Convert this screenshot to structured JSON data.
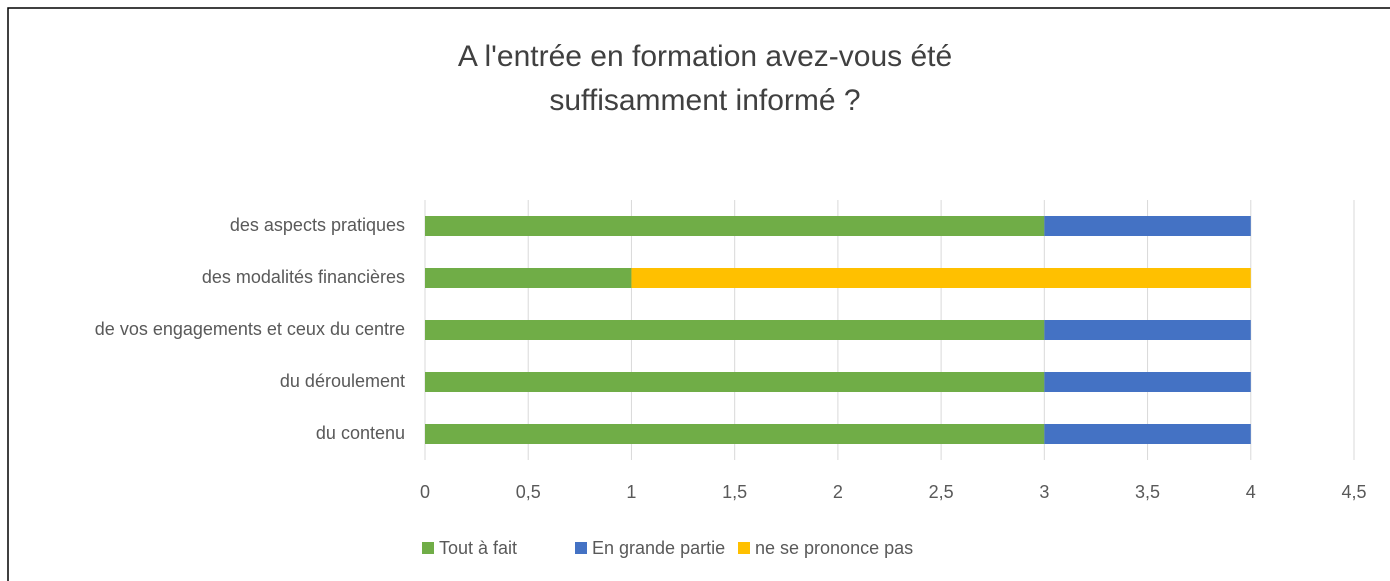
{
  "chart_data": {
    "type": "stacked-barh",
    "title": [
      "A l'entrée en formation avez-vous été",
      "suffisamment informé ?"
    ],
    "categories": [
      "des aspects pratiques",
      "des modalités financières",
      "de vos engagements et ceux du centre",
      "du déroulement",
      "du contenu"
    ],
    "series": [
      {
        "name": "Tout à fait",
        "color": "#70ad47",
        "values": [
          3,
          1,
          3,
          3,
          3
        ]
      },
      {
        "name": "En grande partie",
        "color": "#4472c4",
        "values": [
          1,
          0,
          1,
          1,
          1
        ]
      },
      {
        "name": "ne se prononce pas",
        "color": "#ffc000",
        "values": [
          0,
          3,
          0,
          0,
          0
        ]
      }
    ],
    "xlim": [
      0,
      4.5
    ],
    "xticks": [
      0,
      {
        "value": 0.5,
        "label": "0,5"
      },
      1,
      {
        "value": 1.5,
        "label": "1,5"
      },
      2,
      {
        "value": 2.5,
        "label": "2,5"
      },
      3,
      {
        "value": 3.5,
        "label": "3,5"
      },
      4,
      {
        "value": 4.5,
        "label": "4,5"
      }
    ],
    "grid": true,
    "legend": "bottom"
  }
}
